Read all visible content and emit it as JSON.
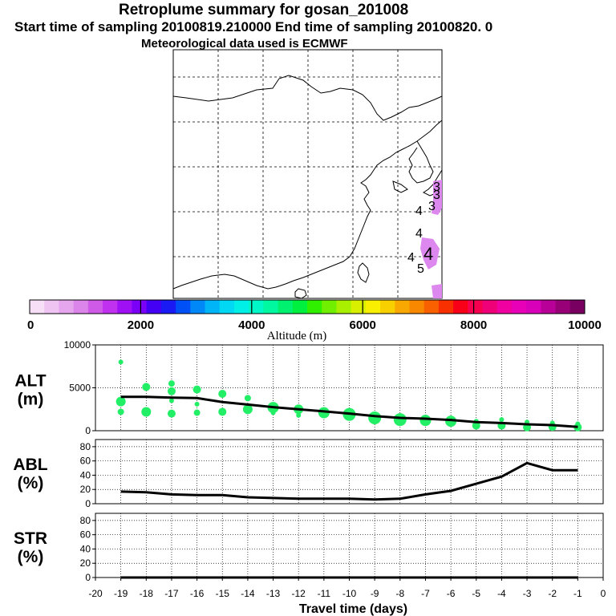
{
  "header": {
    "title": "Retroplume summary for gosan_201008",
    "start_line": "Start time of sampling 20100819.210000     End time of sampling 20100820.     0",
    "met_line": "Meteorological data used is ECMWF"
  },
  "map": {
    "plume_labels": [
      "3",
      "3",
      "3",
      "4",
      "4",
      "4",
      "4",
      "5"
    ],
    "colors": {
      "coast": "#000000",
      "grid": "#000000",
      "plume": "#dd88ee"
    }
  },
  "colorbar": {
    "ticks": [
      "0",
      "2000",
      "4000",
      "6000",
      "8000",
      "10000"
    ],
    "xlabel": "Altitude (m)",
    "colors": [
      "#f7e0f7",
      "#efc4f2",
      "#e6a6ee",
      "#db85ea",
      "#cf5ae8",
      "#bf31ee",
      "#a010f4",
      "#7a00f8",
      "#4400f5",
      "#1a1af5",
      "#0050f8",
      "#0088f8",
      "#00b4f8",
      "#00d8f4",
      "#00f0e8",
      "#00f8c8",
      "#00f8a0",
      "#00f070",
      "#00f040",
      "#30f000",
      "#70f000",
      "#a8f000",
      "#d8f000",
      "#f8f000",
      "#f8d000",
      "#f8a800",
      "#f88800",
      "#f86000",
      "#f83000",
      "#f80018",
      "#f80050",
      "#f00078",
      "#f000a0",
      "#e800b8",
      "#d800b8",
      "#b80098",
      "#980078",
      "#780060"
    ]
  },
  "chart_data": [
    {
      "type": "line",
      "panel": "ALT",
      "ylabel": "ALT\n(m)",
      "ylabel_lines": [
        "ALT",
        "(m)"
      ],
      "ylim": [
        0,
        10000
      ],
      "yticks": [
        "0",
        "5000",
        "10000"
      ],
      "xlim": [
        -20,
        0
      ],
      "x": [
        -19,
        -18,
        -17,
        -16,
        -15,
        -14,
        -13,
        -12,
        -11,
        -10,
        -9,
        -8,
        -7,
        -6,
        -5,
        -4,
        -3,
        -2,
        -1
      ],
      "series": [
        {
          "name": "mean altitude",
          "color": "#000000",
          "values": [
            3950,
            3950,
            3850,
            3800,
            3350,
            3050,
            2750,
            2500,
            2250,
            2000,
            1700,
            1500,
            1400,
            1250,
            1000,
            900,
            750,
            650,
            450
          ]
        }
      ],
      "scatter": {
        "color": "#22ee66",
        "points": [
          {
            "x": -19,
            "y": 8000,
            "s": 3
          },
          {
            "x": -19,
            "y": 3400,
            "s": 6
          },
          {
            "x": -19,
            "y": 2200,
            "s": 4
          },
          {
            "x": -18,
            "y": 5100,
            "s": 5
          },
          {
            "x": -18,
            "y": 2200,
            "s": 6
          },
          {
            "x": -17,
            "y": 5500,
            "s": 4
          },
          {
            "x": -17,
            "y": 4600,
            "s": 5
          },
          {
            "x": -17,
            "y": 3500,
            "s": 3
          },
          {
            "x": -17,
            "y": 2000,
            "s": 5
          },
          {
            "x": -16,
            "y": 4800,
            "s": 5
          },
          {
            "x": -16,
            "y": 3100,
            "s": 3
          },
          {
            "x": -16,
            "y": 2100,
            "s": 4
          },
          {
            "x": -15,
            "y": 4300,
            "s": 5
          },
          {
            "x": -15,
            "y": 2200,
            "s": 5
          },
          {
            "x": -14,
            "y": 3800,
            "s": 4
          },
          {
            "x": -14,
            "y": 2500,
            "s": 6
          },
          {
            "x": -13,
            "y": 2700,
            "s": 7
          },
          {
            "x": -13,
            "y": 2100,
            "s": 3
          },
          {
            "x": -12,
            "y": 2500,
            "s": 6
          },
          {
            "x": -12,
            "y": 1800,
            "s": 3
          },
          {
            "x": -11,
            "y": 2100,
            "s": 7
          },
          {
            "x": -10,
            "y": 1900,
            "s": 8
          },
          {
            "x": -9,
            "y": 1500,
            "s": 8
          },
          {
            "x": -8,
            "y": 1300,
            "s": 8
          },
          {
            "x": -7,
            "y": 1200,
            "s": 7
          },
          {
            "x": -6,
            "y": 1100,
            "s": 7
          },
          {
            "x": -5,
            "y": 1100,
            "s": 3
          },
          {
            "x": -5,
            "y": 600,
            "s": 5
          },
          {
            "x": -4,
            "y": 1300,
            "s": 3
          },
          {
            "x": -4,
            "y": 600,
            "s": 5
          },
          {
            "x": -3,
            "y": 1000,
            "s": 3
          },
          {
            "x": -3,
            "y": 400,
            "s": 5
          },
          {
            "x": -2,
            "y": 900,
            "s": 3
          },
          {
            "x": -2,
            "y": 450,
            "s": 5
          },
          {
            "x": -1,
            "y": 800,
            "s": 3
          },
          {
            "x": -1,
            "y": 400,
            "s": 5
          }
        ]
      }
    },
    {
      "type": "line",
      "panel": "ABL",
      "ylabel_lines": [
        "ABL",
        "(%)"
      ],
      "ylim": [
        0,
        90
      ],
      "yticks": [
        "0",
        "20",
        "40",
        "60",
        "80"
      ],
      "xlim": [
        -20,
        0
      ],
      "x": [
        -19,
        -18,
        -17,
        -16,
        -15,
        -14,
        -13,
        -12,
        -11,
        -10,
        -9,
        -8,
        -7,
        -6,
        -5,
        -4,
        -3,
        -2,
        -1
      ],
      "series": [
        {
          "name": "ABL fraction",
          "color": "#000000",
          "values": [
            17,
            16,
            13,
            12,
            12,
            9,
            8,
            7,
            7,
            7,
            6,
            7,
            13,
            18,
            28,
            38,
            57,
            47,
            47
          ]
        }
      ]
    },
    {
      "type": "line",
      "panel": "STR",
      "ylabel_lines": [
        "STR",
        "(%)"
      ],
      "ylim": [
        0,
        90
      ],
      "yticks": [
        "0",
        "20",
        "40",
        "60",
        "80"
      ],
      "xlim": [
        -20,
        0
      ],
      "x": [
        -19,
        -18,
        -17,
        -16,
        -15,
        -14,
        -13,
        -12,
        -11,
        -10,
        -9,
        -8,
        -7,
        -6,
        -5,
        -4,
        -3,
        -2,
        -1
      ],
      "xticks": [
        "-20",
        "-19",
        "-18",
        "-17",
        "-16",
        "-15",
        "-14",
        "-13",
        "-12",
        "-11",
        "-10",
        "-9",
        "-8",
        "-7",
        "-6",
        "-5",
        "-4",
        "-3",
        "-2",
        "-1",
        "0"
      ],
      "xlabel": "Travel time (days)",
      "series": [
        {
          "name": "stratospheric fraction",
          "color": "#000000",
          "values": [
            0,
            0,
            0,
            0,
            0,
            0,
            0,
            0,
            0,
            0,
            0,
            0,
            0,
            0,
            0,
            0,
            0,
            0,
            0
          ]
        }
      ]
    }
  ]
}
